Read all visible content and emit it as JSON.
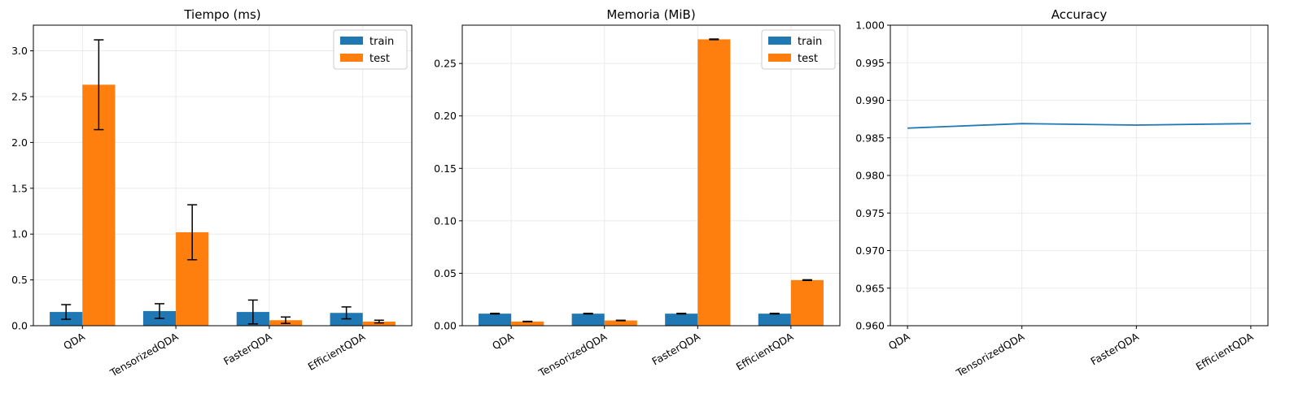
{
  "figure": {
    "background": "#ffffff"
  },
  "colors": {
    "train": "#1f77b4",
    "test": "#ff7f0e",
    "line": "#1f77b4",
    "grid": "#e6e6e6",
    "errorbar": "#000000"
  },
  "chart_data": [
    {
      "type": "bar",
      "title": "Tiempo (ms)",
      "categories": [
        "QDA",
        "TensorizedQDA",
        "FasterQDA",
        "EfficientQDA"
      ],
      "series": [
        {
          "name": "train",
          "values": [
            0.15,
            0.16,
            0.15,
            0.14
          ],
          "err": [
            0.08,
            0.08,
            0.13,
            0.065
          ]
        },
        {
          "name": "test",
          "values": [
            2.63,
            1.02,
            0.06,
            0.045
          ],
          "err": [
            0.49,
            0.3,
            0.035,
            0.015
          ]
        }
      ],
      "ylim": [
        0,
        3.28
      ],
      "yticks": [
        0.0,
        0.5,
        1.0,
        1.5,
        2.0,
        2.5,
        3.0
      ],
      "ytick_labels": [
        "0.0",
        "0.5",
        "1.0",
        "1.5",
        "2.0",
        "2.5",
        "3.0"
      ],
      "grid": true,
      "legend": "top-right"
    },
    {
      "type": "bar",
      "title": "Memoria (MiB)",
      "categories": [
        "QDA",
        "TensorizedQDA",
        "FasterQDA",
        "EfficientQDA"
      ],
      "series": [
        {
          "name": "train",
          "values": [
            0.0115,
            0.0115,
            0.0115,
            0.0115
          ],
          "err": [
            0.0003,
            0.0003,
            0.0003,
            0.0003
          ]
        },
        {
          "name": "test",
          "values": [
            0.004,
            0.005,
            0.273,
            0.0435
          ],
          "err": [
            0.0002,
            0.0002,
            0.0003,
            0.0003
          ]
        }
      ],
      "ylim": [
        0,
        0.2865
      ],
      "yticks": [
        0.0,
        0.05,
        0.1,
        0.15,
        0.2,
        0.25
      ],
      "ytick_labels": [
        "0.00",
        "0.05",
        "0.10",
        "0.15",
        "0.20",
        "0.25"
      ],
      "grid": true,
      "legend": "top-right"
    },
    {
      "type": "line",
      "title": "Accuracy",
      "categories": [
        "QDA",
        "TensorizedQDA",
        "FasterQDA",
        "EfficientQDA"
      ],
      "values": [
        0.9863,
        0.9869,
        0.9867,
        0.9869
      ],
      "ylim": [
        0.96,
        1.0
      ],
      "yticks": [
        0.96,
        0.965,
        0.97,
        0.975,
        0.98,
        0.985,
        0.99,
        0.995,
        1.0
      ],
      "ytick_labels": [
        "0.960",
        "0.965",
        "0.970",
        "0.975",
        "0.980",
        "0.985",
        "0.990",
        "0.995",
        "1.000"
      ],
      "grid": true
    }
  ]
}
